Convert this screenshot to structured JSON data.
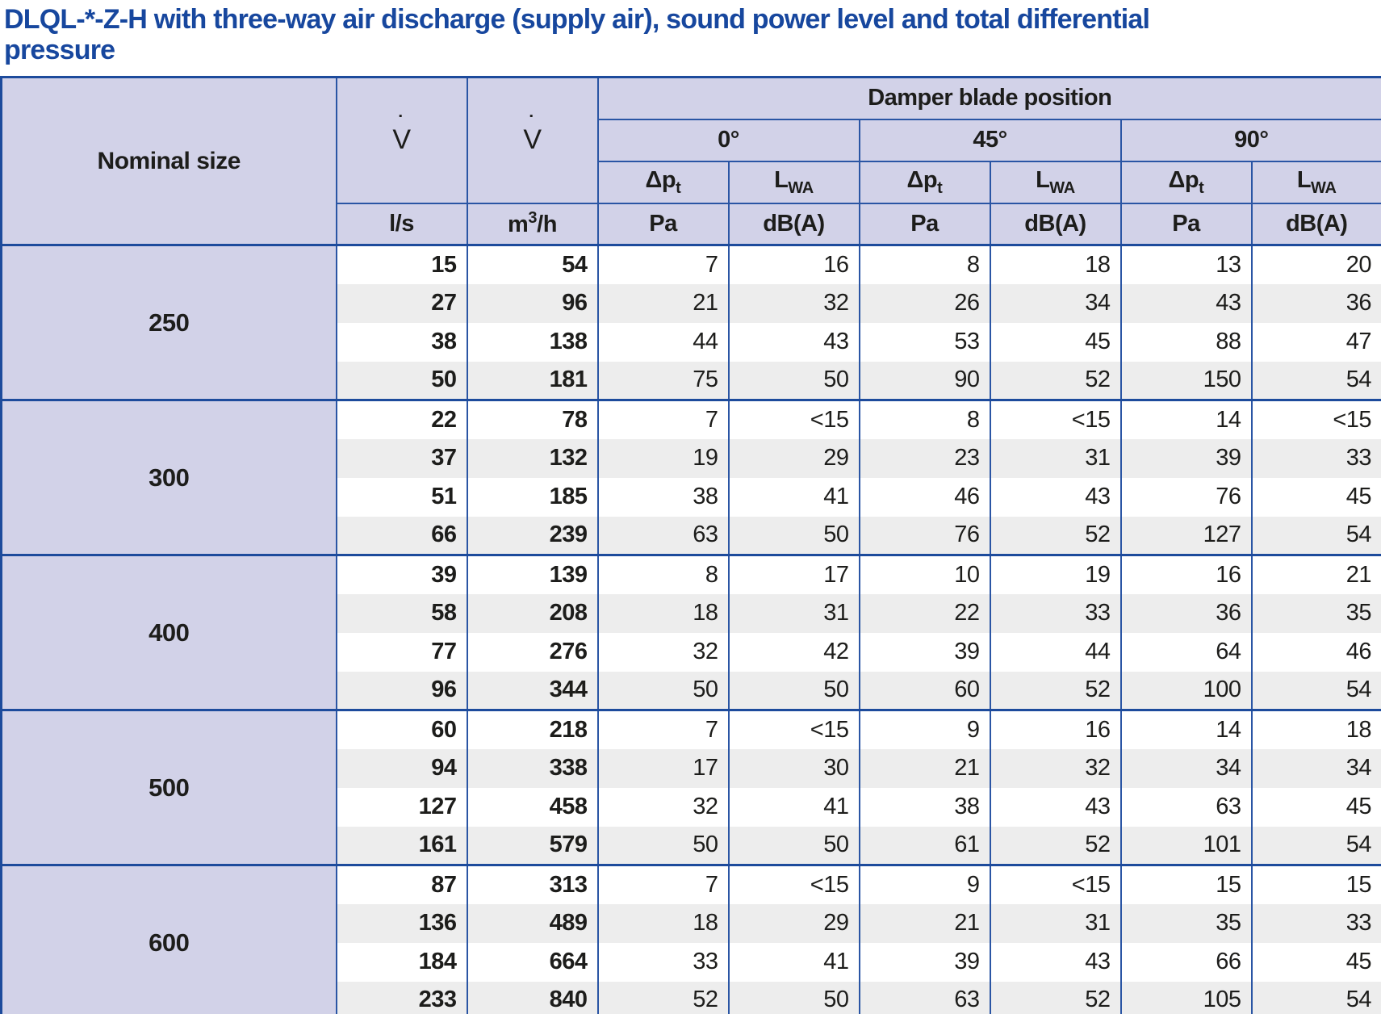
{
  "title": {
    "line1": "DLQL-*-Z-H with three-way air discharge (supply air), sound power level and total differential",
    "line2": "pressure"
  },
  "colors": {
    "title_blue": "#17479e",
    "header_lavender": "#d2d2e8",
    "border_blue_thin": "#2a55a4",
    "border_blue_thick": "#1d4b9c",
    "row_stripe_gray": "#ededed",
    "text_dark": "#1d1d1b"
  },
  "table": {
    "nominal_size_header": "Nominal size",
    "flow_symbol": {
      "base": "V",
      "dot": "˙"
    },
    "damper_header": "Damper blade position",
    "angle_headers": [
      "0°",
      "45°",
      "90°"
    ],
    "dp_label": {
      "base": "Δp",
      "sub": "t"
    },
    "lwa_label": {
      "base": "L",
      "sub": "WA"
    },
    "units": {
      "ls": "l/s",
      "m3h_base": "m",
      "m3h_sup": "3",
      "m3h_rest": "/h",
      "pa": "Pa",
      "dba": "dB(A)"
    },
    "blocks": [
      {
        "size": "250",
        "rows": [
          [
            "15",
            "54",
            "7",
            "16",
            "8",
            "18",
            "13",
            "20"
          ],
          [
            "27",
            "96",
            "21",
            "32",
            "26",
            "34",
            "43",
            "36"
          ],
          [
            "38",
            "138",
            "44",
            "43",
            "53",
            "45",
            "88",
            "47"
          ],
          [
            "50",
            "181",
            "75",
            "50",
            "90",
            "52",
            "150",
            "54"
          ]
        ]
      },
      {
        "size": "300",
        "rows": [
          [
            "22",
            "78",
            "7",
            "<15",
            "8",
            "<15",
            "14",
            "<15"
          ],
          [
            "37",
            "132",
            "19",
            "29",
            "23",
            "31",
            "39",
            "33"
          ],
          [
            "51",
            "185",
            "38",
            "41",
            "46",
            "43",
            "76",
            "45"
          ],
          [
            "66",
            "239",
            "63",
            "50",
            "76",
            "52",
            "127",
            "54"
          ]
        ]
      },
      {
        "size": "400",
        "rows": [
          [
            "39",
            "139",
            "8",
            "17",
            "10",
            "19",
            "16",
            "21"
          ],
          [
            "58",
            "208",
            "18",
            "31",
            "22",
            "33",
            "36",
            "35"
          ],
          [
            "77",
            "276",
            "32",
            "42",
            "39",
            "44",
            "64",
            "46"
          ],
          [
            "96",
            "344",
            "50",
            "50",
            "60",
            "52",
            "100",
            "54"
          ]
        ]
      },
      {
        "size": "500",
        "rows": [
          [
            "60",
            "218",
            "7",
            "<15",
            "9",
            "16",
            "14",
            "18"
          ],
          [
            "94",
            "338",
            "17",
            "30",
            "21",
            "32",
            "34",
            "34"
          ],
          [
            "127",
            "458",
            "32",
            "41",
            "38",
            "43",
            "63",
            "45"
          ],
          [
            "161",
            "579",
            "50",
            "50",
            "61",
            "52",
            "101",
            "54"
          ]
        ]
      },
      {
        "size": "600",
        "rows": [
          [
            "87",
            "313",
            "7",
            "<15",
            "9",
            "<15",
            "15",
            "15"
          ],
          [
            "136",
            "489",
            "18",
            "29",
            "21",
            "31",
            "35",
            "33"
          ],
          [
            "184",
            "664",
            "33",
            "41",
            "39",
            "43",
            "66",
            "45"
          ],
          [
            "233",
            "840",
            "52",
            "50",
            "63",
            "52",
            "105",
            "54"
          ]
        ]
      }
    ]
  }
}
